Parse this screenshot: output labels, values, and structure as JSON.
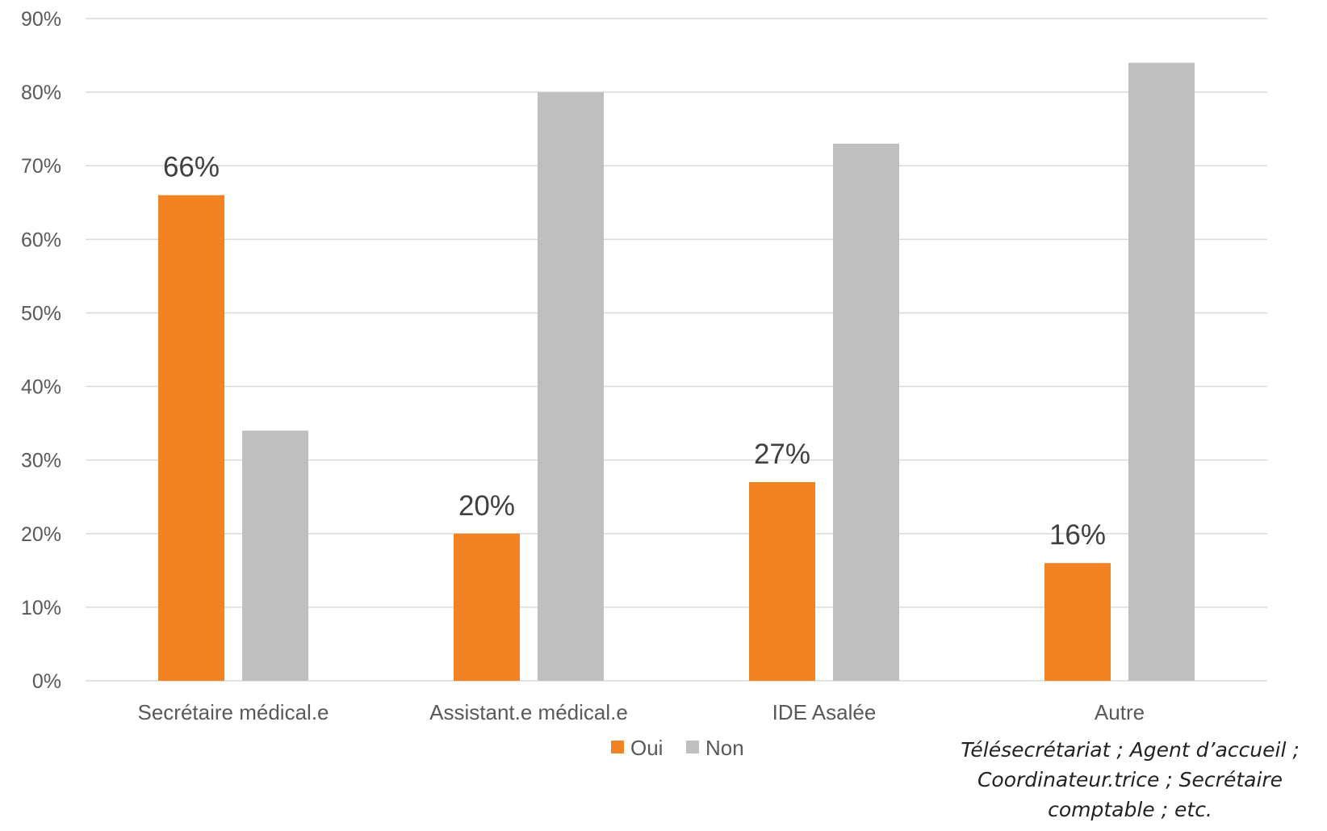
{
  "chart_data": {
    "type": "bar",
    "categories": [
      "Secrétaire médical.e",
      "Assistant.e médical.e",
      "IDE Asalée",
      "Autre"
    ],
    "series": [
      {
        "name": "Oui",
        "values": [
          66,
          20,
          27,
          16
        ],
        "color": "#F28322"
      },
      {
        "name": "Non",
        "values": [
          34,
          80,
          73,
          84
        ],
        "color": "#BFBFBF"
      }
    ],
    "data_labels": {
      "Oui": [
        "66%",
        "20%",
        "27%",
        "16%"
      ]
    },
    "ylim": [
      0,
      90
    ],
    "yticks": [
      0,
      10,
      20,
      30,
      40,
      50,
      60,
      70,
      80,
      90
    ],
    "ytick_labels": [
      "0%",
      "10%",
      "20%",
      "30%",
      "40%",
      "50%",
      "60%",
      "70%",
      "80%",
      "90%"
    ],
    "grid": true,
    "legend_position": "bottom-center",
    "title": "",
    "xlabel": "",
    "ylabel": "",
    "colors": {
      "grid": "#D9D9D9",
      "axis_text": "#595959",
      "data_label": "#404040"
    }
  },
  "note": {
    "lines": [
      "Télésecrétariat ; Agent d’accueil ;",
      "Coordinateur.trice ; Secrétaire",
      "comptable ; etc."
    ]
  }
}
